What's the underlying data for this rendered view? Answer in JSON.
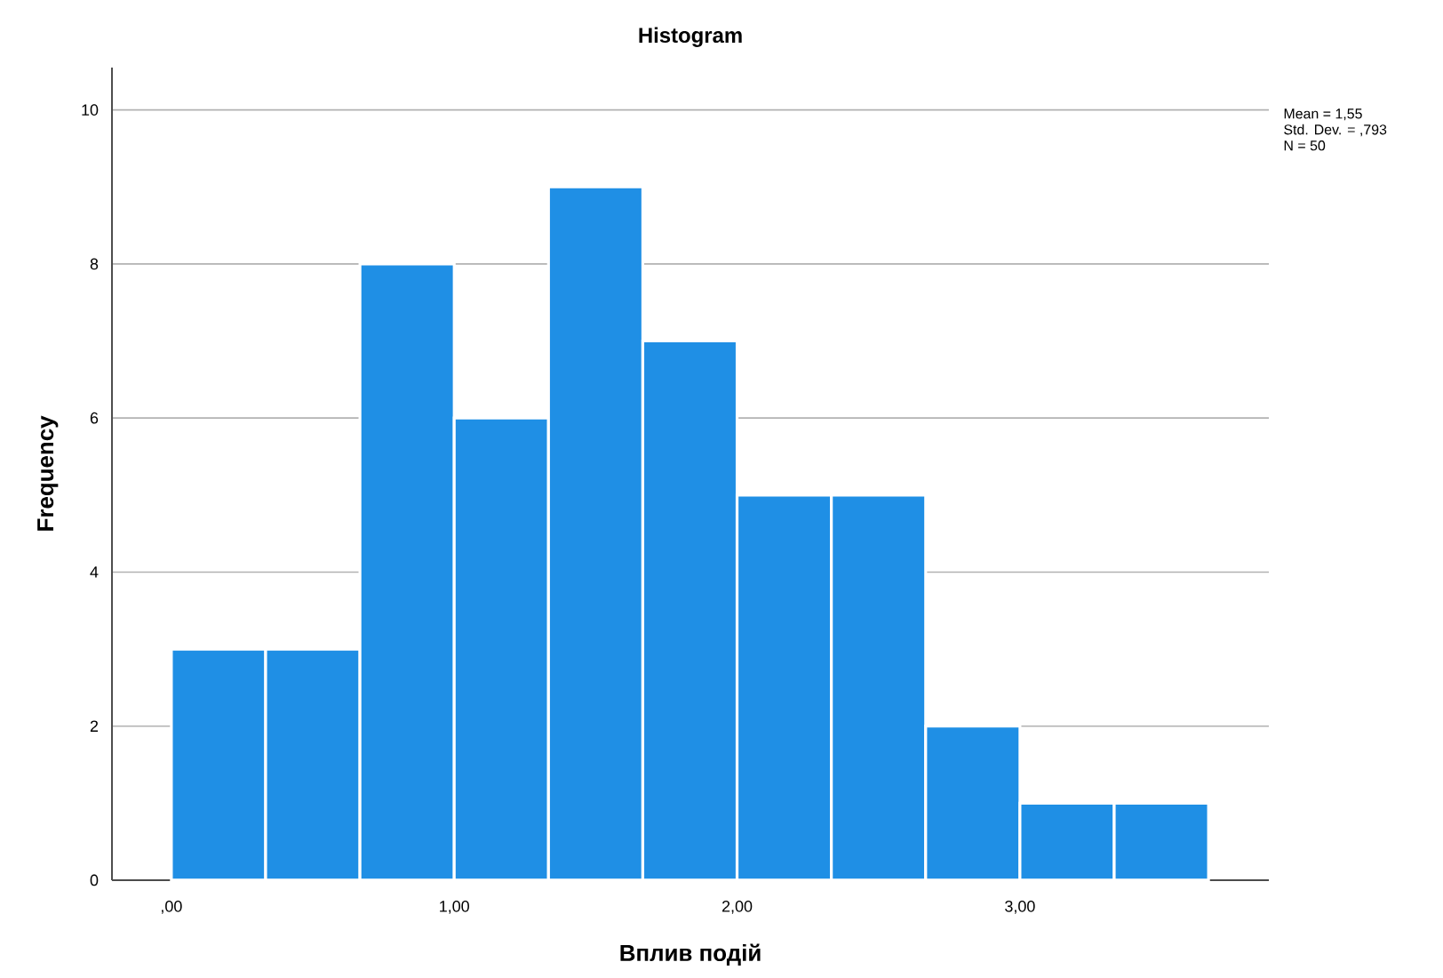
{
  "chart_data": {
    "type": "histogram",
    "title": "Histogram",
    "xlabel": "Вплив подій",
    "ylabel": "Frequency",
    "bins": [
      0,
      0.3333,
      0.6667,
      1,
      1.3333,
      1.6667,
      2,
      2.3333,
      2.6667,
      3,
      3.3333,
      3.6667
    ],
    "values": [
      3,
      3,
      8,
      6,
      9,
      7,
      5,
      5,
      2,
      1,
      1
    ],
    "color": "#1f8fe5",
    "xlim": [
      -0.21,
      3.88
    ],
    "xticks": [
      {
        "value": 0,
        "label": ",00"
      },
      {
        "value": 1,
        "label": "1,00"
      },
      {
        "value": 2,
        "label": "2,00"
      },
      {
        "value": 3,
        "label": "3,00"
      }
    ],
    "ylim": [
      0,
      10.55
    ],
    "yticks": [
      0,
      2,
      4,
      6,
      8,
      10
    ],
    "grid": "y",
    "annotations": [
      "Mean = 1,55",
      "Std. Dev. = ,793",
      "N = 50"
    ]
  }
}
